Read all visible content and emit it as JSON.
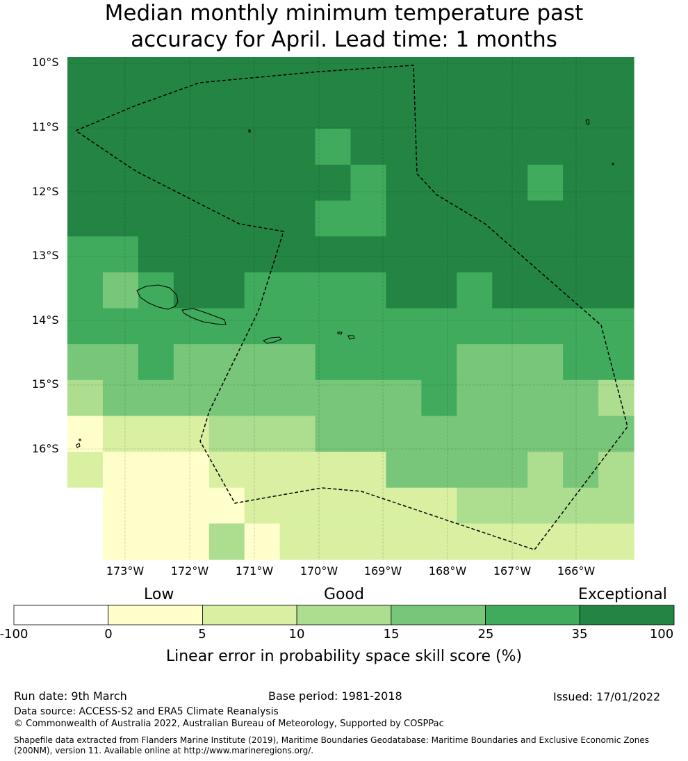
{
  "title_line1": "Median monthly minimum temperature past",
  "title_line2": "accuracy for April. Lead time: 1 months",
  "map": {
    "lat_labels": [
      "10°S",
      "11°S",
      "12°S",
      "13°S",
      "14°S",
      "15°S",
      "16°S"
    ],
    "lon_labels": [
      "173°W",
      "172°W",
      "171°W",
      "170°W",
      "169°W",
      "168°W",
      "167°W",
      "166°W"
    ],
    "colors": [
      "#ffffff",
      "#ffffcc",
      "#d9f0a3",
      "#addd8e",
      "#78c679",
      "#41ab5d",
      "#238443"
    ],
    "grid_class_rows": [
      [
        6,
        6,
        6,
        6,
        6,
        6,
        6,
        6,
        6,
        6,
        6,
        6,
        6,
        6,
        6,
        6
      ],
      [
        6,
        6,
        6,
        6,
        6,
        6,
        6,
        6,
        6,
        6,
        6,
        6,
        6,
        6,
        6,
        6
      ],
      [
        6,
        6,
        6,
        6,
        6,
        6,
        6,
        5,
        6,
        6,
        6,
        6,
        6,
        6,
        6,
        6
      ],
      [
        6,
        6,
        6,
        6,
        6,
        6,
        6,
        6,
        5,
        6,
        6,
        6,
        6,
        5,
        6,
        6
      ],
      [
        6,
        6,
        6,
        6,
        6,
        6,
        6,
        5,
        5,
        6,
        6,
        6,
        6,
        6,
        6,
        6
      ],
      [
        5,
        5,
        6,
        6,
        6,
        6,
        6,
        6,
        6,
        6,
        6,
        6,
        6,
        6,
        6,
        6
      ],
      [
        5,
        4,
        5,
        6,
        6,
        5,
        5,
        5,
        5,
        6,
        6,
        5,
        6,
        6,
        6,
        6
      ],
      [
        5,
        5,
        5,
        5,
        5,
        5,
        5,
        5,
        5,
        5,
        5,
        5,
        5,
        5,
        5,
        5
      ],
      [
        4,
        4,
        5,
        4,
        4,
        4,
        4,
        5,
        5,
        5,
        5,
        4,
        4,
        4,
        5,
        5
      ],
      [
        3,
        4,
        4,
        4,
        4,
        4,
        4,
        4,
        4,
        4,
        5,
        4,
        4,
        4,
        4,
        3
      ],
      [
        1,
        2,
        2,
        2,
        3,
        3,
        3,
        4,
        4,
        4,
        4,
        4,
        4,
        4,
        4,
        4
      ],
      [
        2,
        1,
        1,
        1,
        2,
        2,
        2,
        2,
        2,
        4,
        4,
        4,
        4,
        3,
        4,
        3
      ],
      [
        0,
        1,
        1,
        1,
        1,
        2,
        2,
        2,
        2,
        2,
        2,
        3,
        3,
        3,
        3,
        3
      ],
      [
        0,
        1,
        1,
        1,
        3,
        1,
        2,
        2,
        2,
        2,
        2,
        2,
        2,
        2,
        2,
        2
      ]
    ]
  },
  "colorbar": {
    "categories": [
      "Low",
      "Good",
      "Exceptional"
    ],
    "ticks": [
      "-100",
      "0",
      "5",
      "10",
      "15",
      "25",
      "35",
      "100"
    ],
    "label": "Linear error in probability space skill score (%)"
  },
  "footer": {
    "run_date": "Run date: 9th March",
    "base_period": "Base period: 1981-2018",
    "issued": "Issued: 17/01/2022",
    "data_source": "Data source: ACCESS-S2 and ERA5 Climate Reanalysis",
    "copyright": "© Commonwealth of Australia 2022, Australian Bureau of Meteorology, Supported by COSPPac",
    "shapefile": "Shapefile data extracted from Flanders Marine Institute (2019), Maritime Boundaries Geodatabase: Maritime Boundaries and Exclusive Economic Zones (200NM), version 11. Available online at http://www.marineregions.org/."
  }
}
